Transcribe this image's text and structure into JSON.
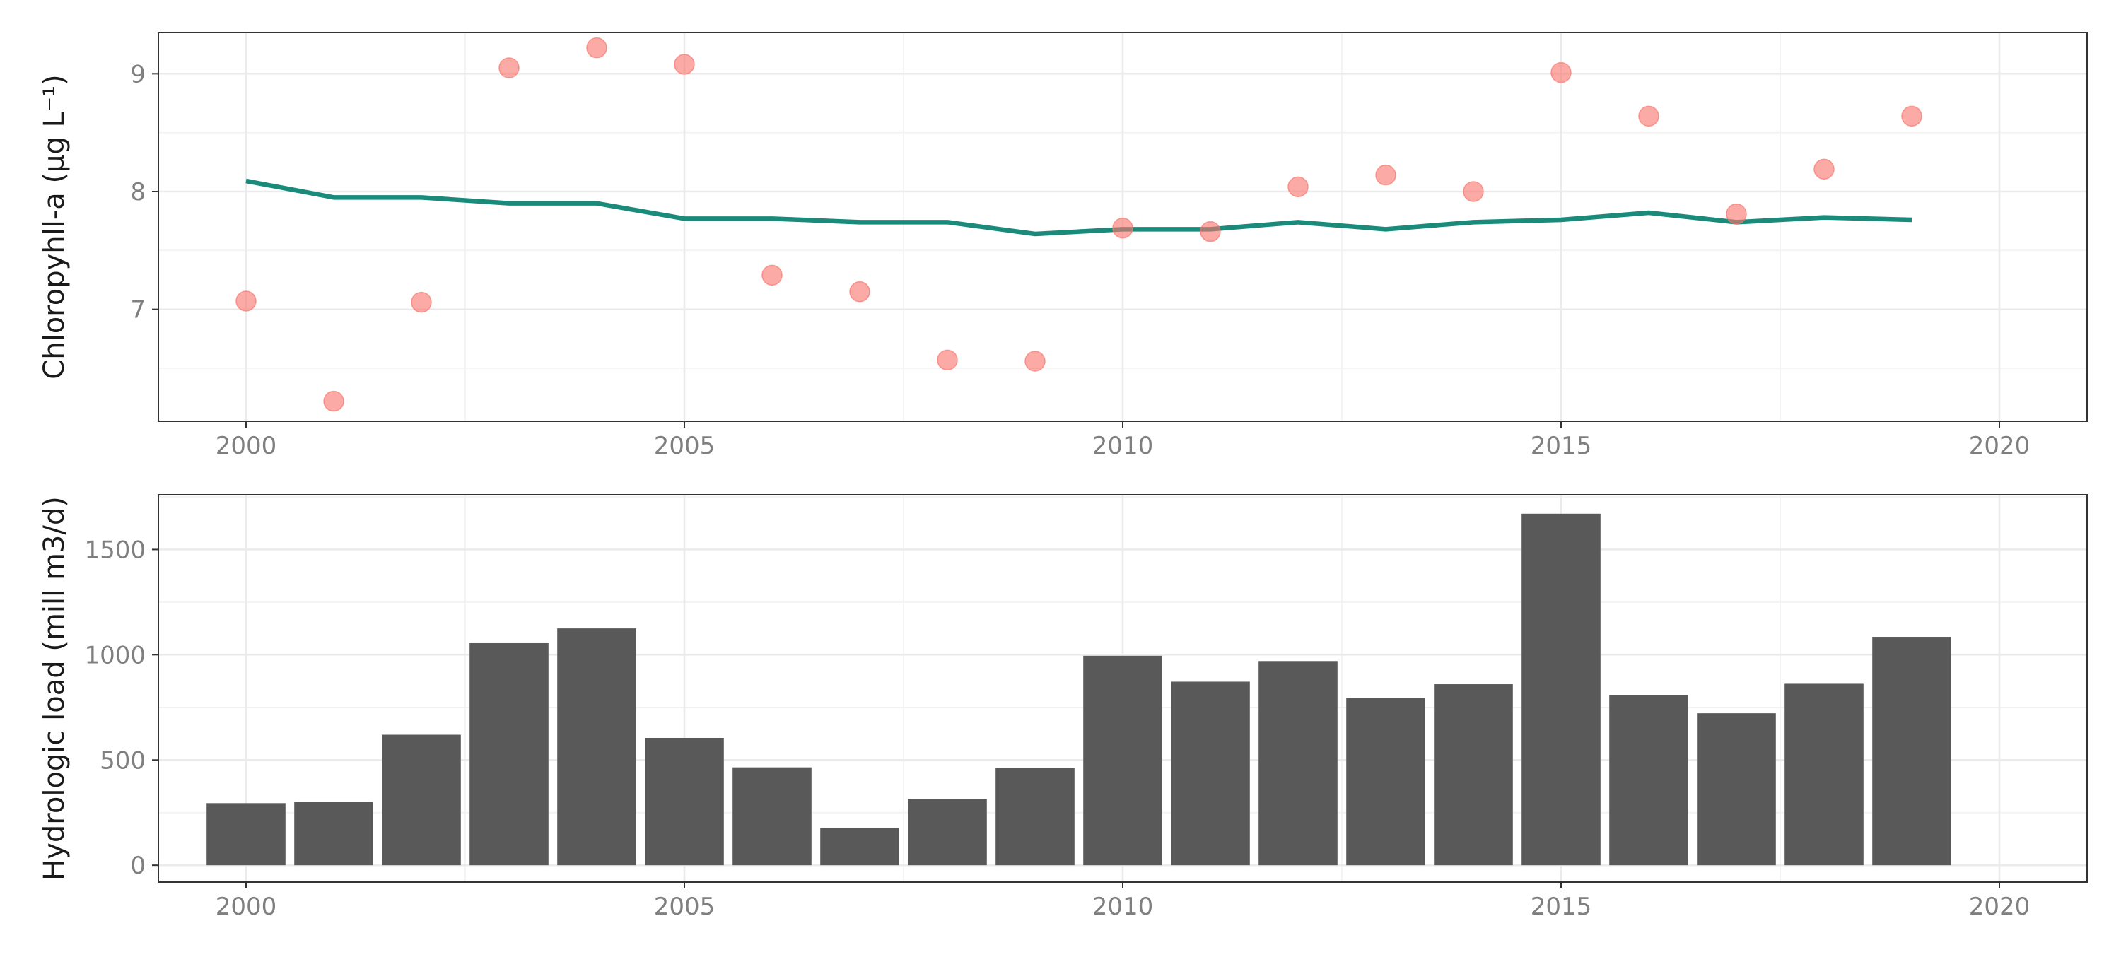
{
  "chart_data": [
    {
      "type": "scatter",
      "ylabel": "Chloropyhll-a (μg L⁻¹)",
      "xlim": [
        1999.0,
        2021.0
      ],
      "ylim": [
        6.05,
        9.35
      ],
      "x_ticks": [
        2000,
        2005,
        2010,
        2015,
        2020
      ],
      "x_tick_labels": [
        "2000",
        "2005",
        "2010",
        "2015",
        "2020"
      ],
      "y_ticks": [
        7,
        8,
        9
      ],
      "y_tick_labels": [
        "7",
        "8",
        "9"
      ],
      "grid": true,
      "series": [
        {
          "kind": "points",
          "color": "#f8766d",
          "x": [
            2000,
            2001,
            2002,
            2003,
            2004,
            2005,
            2006,
            2007,
            2008,
            2009,
            2010,
            2011,
            2012,
            2013,
            2014,
            2015,
            2016,
            2017,
            2018,
            2019
          ],
          "y": [
            7.07,
            6.22,
            7.06,
            9.05,
            9.22,
            9.08,
            7.29,
            7.15,
            6.57,
            6.56,
            7.69,
            7.66,
            8.04,
            8.14,
            8.0,
            9.01,
            8.64,
            7.81,
            8.19,
            8.64
          ]
        },
        {
          "kind": "line",
          "color": "#1a8a7a",
          "x": [
            2000,
            2001,
            2002,
            2003,
            2004,
            2005,
            2006,
            2007,
            2008,
            2009,
            2010,
            2011,
            2012,
            2013,
            2014,
            2015,
            2016,
            2017,
            2018,
            2019
          ],
          "y": [
            8.09,
            7.95,
            7.95,
            7.9,
            7.9,
            7.77,
            7.77,
            7.74,
            7.74,
            7.64,
            7.68,
            7.68,
            7.74,
            7.68,
            7.74,
            7.76,
            7.82,
            7.74,
            7.78,
            7.76
          ]
        }
      ]
    },
    {
      "type": "bar",
      "ylabel": "Hydrologic load (mill m3/d)",
      "xlim": [
        1999.0,
        2021.0
      ],
      "ylim": [
        -80,
        1760
      ],
      "x_ticks": [
        2000,
        2005,
        2010,
        2015,
        2020
      ],
      "x_tick_labels": [
        "2000",
        "2005",
        "2010",
        "2015",
        "2020"
      ],
      "y_ticks": [
        0,
        500,
        1000,
        1500
      ],
      "y_tick_labels": [
        "0",
        "500",
        "1000",
        "1500"
      ],
      "grid": true,
      "bar_color": "#595959",
      "categories": [
        2000,
        2001,
        2002,
        2003,
        2004,
        2005,
        2006,
        2007,
        2008,
        2009,
        2010,
        2011,
        2012,
        2013,
        2014,
        2015,
        2016,
        2017,
        2018,
        2019
      ],
      "values": [
        295,
        300,
        620,
        1055,
        1125,
        605,
        465,
        178,
        315,
        462,
        995,
        872,
        970,
        795,
        860,
        1670,
        808,
        722,
        862,
        1085
      ]
    }
  ]
}
